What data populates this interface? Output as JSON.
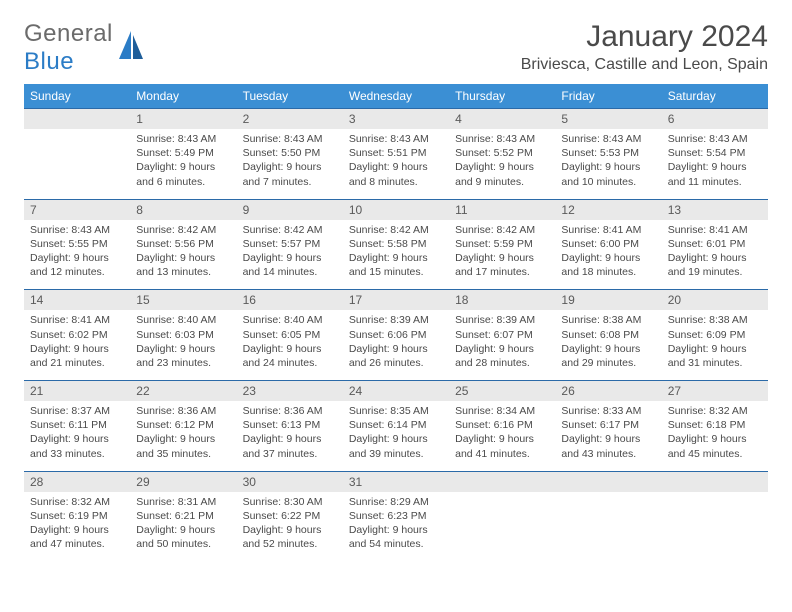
{
  "logo": {
    "word1": "General",
    "word2": "Blue"
  },
  "title": {
    "month_year": "January 2024",
    "location": "Briviesca, Castille and Leon, Spain"
  },
  "colors": {
    "header_bg": "#3b8fd4",
    "header_text": "#ffffff",
    "daynum_bg": "#e9e9e9",
    "daynum_border": "#2b6aa8",
    "body_text": "#4a4a4a",
    "logo_gray": "#6b6b6b",
    "logo_blue": "#2b7cc6"
  },
  "day_names": [
    "Sunday",
    "Monday",
    "Tuesday",
    "Wednesday",
    "Thursday",
    "Friday",
    "Saturday"
  ],
  "weeks": [
    [
      {
        "n": "",
        "lines": []
      },
      {
        "n": "1",
        "lines": [
          "Sunrise: 8:43 AM",
          "Sunset: 5:49 PM",
          "Daylight: 9 hours",
          "and 6 minutes."
        ]
      },
      {
        "n": "2",
        "lines": [
          "Sunrise: 8:43 AM",
          "Sunset: 5:50 PM",
          "Daylight: 9 hours",
          "and 7 minutes."
        ]
      },
      {
        "n": "3",
        "lines": [
          "Sunrise: 8:43 AM",
          "Sunset: 5:51 PM",
          "Daylight: 9 hours",
          "and 8 minutes."
        ]
      },
      {
        "n": "4",
        "lines": [
          "Sunrise: 8:43 AM",
          "Sunset: 5:52 PM",
          "Daylight: 9 hours",
          "and 9 minutes."
        ]
      },
      {
        "n": "5",
        "lines": [
          "Sunrise: 8:43 AM",
          "Sunset: 5:53 PM",
          "Daylight: 9 hours",
          "and 10 minutes."
        ]
      },
      {
        "n": "6",
        "lines": [
          "Sunrise: 8:43 AM",
          "Sunset: 5:54 PM",
          "Daylight: 9 hours",
          "and 11 minutes."
        ]
      }
    ],
    [
      {
        "n": "7",
        "lines": [
          "Sunrise: 8:43 AM",
          "Sunset: 5:55 PM",
          "Daylight: 9 hours",
          "and 12 minutes."
        ]
      },
      {
        "n": "8",
        "lines": [
          "Sunrise: 8:42 AM",
          "Sunset: 5:56 PM",
          "Daylight: 9 hours",
          "and 13 minutes."
        ]
      },
      {
        "n": "9",
        "lines": [
          "Sunrise: 8:42 AM",
          "Sunset: 5:57 PM",
          "Daylight: 9 hours",
          "and 14 minutes."
        ]
      },
      {
        "n": "10",
        "lines": [
          "Sunrise: 8:42 AM",
          "Sunset: 5:58 PM",
          "Daylight: 9 hours",
          "and 15 minutes."
        ]
      },
      {
        "n": "11",
        "lines": [
          "Sunrise: 8:42 AM",
          "Sunset: 5:59 PM",
          "Daylight: 9 hours",
          "and 17 minutes."
        ]
      },
      {
        "n": "12",
        "lines": [
          "Sunrise: 8:41 AM",
          "Sunset: 6:00 PM",
          "Daylight: 9 hours",
          "and 18 minutes."
        ]
      },
      {
        "n": "13",
        "lines": [
          "Sunrise: 8:41 AM",
          "Sunset: 6:01 PM",
          "Daylight: 9 hours",
          "and 19 minutes."
        ]
      }
    ],
    [
      {
        "n": "14",
        "lines": [
          "Sunrise: 8:41 AM",
          "Sunset: 6:02 PM",
          "Daylight: 9 hours",
          "and 21 minutes."
        ]
      },
      {
        "n": "15",
        "lines": [
          "Sunrise: 8:40 AM",
          "Sunset: 6:03 PM",
          "Daylight: 9 hours",
          "and 23 minutes."
        ]
      },
      {
        "n": "16",
        "lines": [
          "Sunrise: 8:40 AM",
          "Sunset: 6:05 PM",
          "Daylight: 9 hours",
          "and 24 minutes."
        ]
      },
      {
        "n": "17",
        "lines": [
          "Sunrise: 8:39 AM",
          "Sunset: 6:06 PM",
          "Daylight: 9 hours",
          "and 26 minutes."
        ]
      },
      {
        "n": "18",
        "lines": [
          "Sunrise: 8:39 AM",
          "Sunset: 6:07 PM",
          "Daylight: 9 hours",
          "and 28 minutes."
        ]
      },
      {
        "n": "19",
        "lines": [
          "Sunrise: 8:38 AM",
          "Sunset: 6:08 PM",
          "Daylight: 9 hours",
          "and 29 minutes."
        ]
      },
      {
        "n": "20",
        "lines": [
          "Sunrise: 8:38 AM",
          "Sunset: 6:09 PM",
          "Daylight: 9 hours",
          "and 31 minutes."
        ]
      }
    ],
    [
      {
        "n": "21",
        "lines": [
          "Sunrise: 8:37 AM",
          "Sunset: 6:11 PM",
          "Daylight: 9 hours",
          "and 33 minutes."
        ]
      },
      {
        "n": "22",
        "lines": [
          "Sunrise: 8:36 AM",
          "Sunset: 6:12 PM",
          "Daylight: 9 hours",
          "and 35 minutes."
        ]
      },
      {
        "n": "23",
        "lines": [
          "Sunrise: 8:36 AM",
          "Sunset: 6:13 PM",
          "Daylight: 9 hours",
          "and 37 minutes."
        ]
      },
      {
        "n": "24",
        "lines": [
          "Sunrise: 8:35 AM",
          "Sunset: 6:14 PM",
          "Daylight: 9 hours",
          "and 39 minutes."
        ]
      },
      {
        "n": "25",
        "lines": [
          "Sunrise: 8:34 AM",
          "Sunset: 6:16 PM",
          "Daylight: 9 hours",
          "and 41 minutes."
        ]
      },
      {
        "n": "26",
        "lines": [
          "Sunrise: 8:33 AM",
          "Sunset: 6:17 PM",
          "Daylight: 9 hours",
          "and 43 minutes."
        ]
      },
      {
        "n": "27",
        "lines": [
          "Sunrise: 8:32 AM",
          "Sunset: 6:18 PM",
          "Daylight: 9 hours",
          "and 45 minutes."
        ]
      }
    ],
    [
      {
        "n": "28",
        "lines": [
          "Sunrise: 8:32 AM",
          "Sunset: 6:19 PM",
          "Daylight: 9 hours",
          "and 47 minutes."
        ]
      },
      {
        "n": "29",
        "lines": [
          "Sunrise: 8:31 AM",
          "Sunset: 6:21 PM",
          "Daylight: 9 hours",
          "and 50 minutes."
        ]
      },
      {
        "n": "30",
        "lines": [
          "Sunrise: 8:30 AM",
          "Sunset: 6:22 PM",
          "Daylight: 9 hours",
          "and 52 minutes."
        ]
      },
      {
        "n": "31",
        "lines": [
          "Sunrise: 8:29 AM",
          "Sunset: 6:23 PM",
          "Daylight: 9 hours",
          "and 54 minutes."
        ]
      },
      {
        "n": "",
        "lines": []
      },
      {
        "n": "",
        "lines": []
      },
      {
        "n": "",
        "lines": []
      }
    ]
  ]
}
